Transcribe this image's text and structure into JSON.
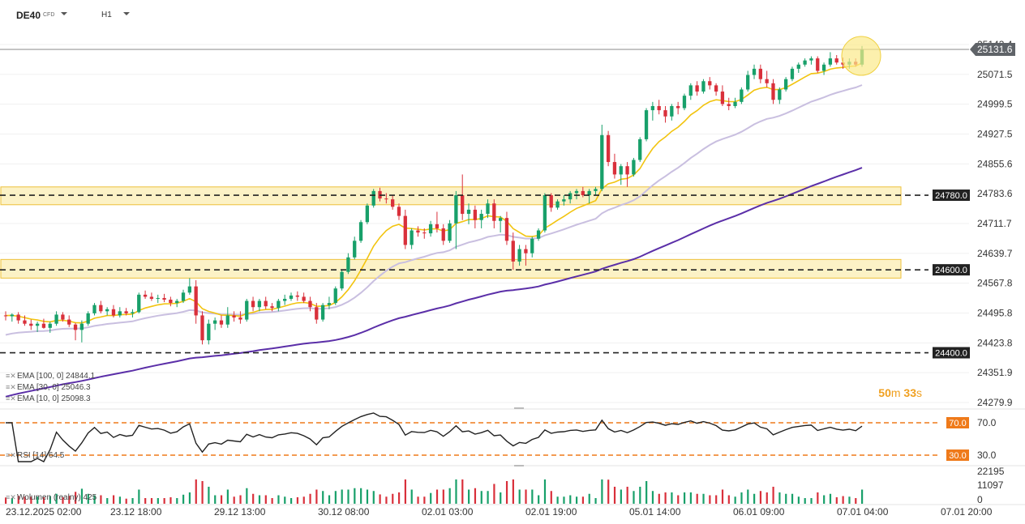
{
  "header": {
    "symbol": "DE40",
    "instrument_type": "CFD",
    "timeframe": "H1"
  },
  "price_axis": {
    "ticks": [
      "25143.4",
      "25071.5",
      "24999.5",
      "24927.5",
      "24855.6",
      "24783.6",
      "24711.7",
      "24639.7",
      "24567.8",
      "24495.8",
      "24423.8",
      "24351.9",
      "24279.9"
    ],
    "current_price": "25131.6"
  },
  "levels": [
    {
      "label": "24780.0",
      "value": 24780.0
    },
    {
      "label": "24600.0",
      "value": 24600.0
    },
    {
      "label": "24400.0",
      "value": 24400.0
    }
  ],
  "zones": [
    {
      "from": 24757,
      "to": 24800
    },
    {
      "from": 24580,
      "to": 24625
    }
  ],
  "legend": [
    {
      "text": "EMA  [100,  0]  24844.1"
    },
    {
      "text": "EMA  [30,  0]  25046.3"
    },
    {
      "text": "EMA  [10,  0]  25098.3"
    }
  ],
  "countdown": {
    "min": "50",
    "min_unit": "m",
    "sec": "33",
    "sec_unit": "s"
  },
  "rsi": {
    "label": "RSI  [14]  64.5",
    "upper_label": "70.0",
    "lower_label": "30.0",
    "axis_top": "70.0",
    "axis_bottom": "30.0"
  },
  "volume": {
    "label": "Wolumen  (realny)  425",
    "ticks": [
      "22195",
      "11097",
      "0"
    ]
  },
  "time_axis": [
    "23.12.2025  02:00",
    "23.12  18:00",
    "29.12  13:00",
    "30.12  08:00",
    "02.01  03:00",
    "02.01  19:00",
    "05.01  14:00",
    "06.01  09:00",
    "07.01  04:00",
    "07.01  20:00"
  ],
  "colors": {
    "up": "#18a06a",
    "down": "#d9303b",
    "ema10": "#f2c40f",
    "ema30": "#c9bfe0",
    "ema100": "#5b2fa8",
    "zone": "#fbeeb3",
    "zone_border": "#eec13b",
    "rsi_band": "#ef7a1a"
  },
  "chart_data": {
    "type": "candlestick",
    "price_range": [
      24279.9,
      25143.4
    ],
    "candles": [
      [
        24490,
        24500,
        24478,
        24488
      ],
      [
        24488,
        24495,
        24475,
        24492
      ],
      [
        24492,
        24498,
        24470,
        24478
      ],
      [
        24478,
        24490,
        24465,
        24470
      ],
      [
        24470,
        24480,
        24455,
        24465
      ],
      [
        24465,
        24475,
        24450,
        24470
      ],
      [
        24470,
        24482,
        24458,
        24460
      ],
      [
        24460,
        24475,
        24448,
        24470
      ],
      [
        24470,
        24500,
        24465,
        24492
      ],
      [
        24492,
        24498,
        24475,
        24480
      ],
      [
        24480,
        24490,
        24462,
        24468
      ],
      [
        24468,
        24472,
        24430,
        24455
      ],
      [
        24455,
        24478,
        24425,
        24470
      ],
      [
        24470,
        24500,
        24465,
        24495
      ],
      [
        24495,
        24520,
        24490,
        24515
      ],
      [
        24515,
        24525,
        24495,
        24500
      ],
      [
        24500,
        24510,
        24490,
        24505
      ],
      [
        24505,
        24515,
        24485,
        24490
      ],
      [
        24490,
        24510,
        24485,
        24500
      ],
      [
        24500,
        24508,
        24490,
        24495
      ],
      [
        24495,
        24505,
        24485,
        24498
      ],
      [
        24498,
        24545,
        24495,
        24540
      ],
      [
        24540,
        24550,
        24530,
        24535
      ],
      [
        24535,
        24545,
        24525,
        24530
      ],
      [
        24530,
        24540,
        24520,
        24532
      ],
      [
        24532,
        24542,
        24522,
        24528
      ],
      [
        24528,
        24535,
        24512,
        24520
      ],
      [
        24520,
        24530,
        24510,
        24525
      ],
      [
        24525,
        24552,
        24520,
        24545
      ],
      [
        24545,
        24580,
        24540,
        24560
      ],
      [
        24560,
        24575,
        24470,
        24490
      ],
      [
        24490,
        24500,
        24420,
        24430
      ],
      [
        24430,
        24480,
        24420,
        24470
      ],
      [
        24470,
        24485,
        24455,
        24478
      ],
      [
        24478,
        24490,
        24460,
        24468
      ],
      [
        24468,
        24510,
        24460,
        24490
      ],
      [
        24490,
        24500,
        24475,
        24485
      ],
      [
        24485,
        24500,
        24470,
        24480
      ],
      [
        24480,
        24530,
        24475,
        24525
      ],
      [
        24525,
        24535,
        24500,
        24510
      ],
      [
        24510,
        24530,
        24500,
        24525
      ],
      [
        24525,
        24535,
        24505,
        24512
      ],
      [
        24512,
        24520,
        24500,
        24508
      ],
      [
        24508,
        24530,
        24500,
        24525
      ],
      [
        24525,
        24540,
        24515,
        24530
      ],
      [
        24530,
        24545,
        24525,
        24538
      ],
      [
        24538,
        24548,
        24525,
        24535
      ],
      [
        24535,
        24545,
        24520,
        24525
      ],
      [
        24525,
        24535,
        24500,
        24510
      ],
      [
        24510,
        24520,
        24470,
        24480
      ],
      [
        24480,
        24520,
        24475,
        24515
      ],
      [
        24515,
        24535,
        24505,
        24520
      ],
      [
        24520,
        24560,
        24515,
        24555
      ],
      [
        24555,
        24600,
        24550,
        24595
      ],
      [
        24595,
        24640,
        24590,
        24630
      ],
      [
        24630,
        24680,
        24625,
        24670
      ],
      [
        24670,
        24720,
        24665,
        24715
      ],
      [
        24715,
        24760,
        24710,
        24755
      ],
      [
        24755,
        24795,
        24750,
        24790
      ],
      [
        24790,
        24798,
        24765,
        24772
      ],
      [
        24772,
        24785,
        24760,
        24770
      ],
      [
        24770,
        24780,
        24745,
        24752
      ],
      [
        24752,
        24760,
        24720,
        24730
      ],
      [
        24730,
        24745,
        24650,
        24660
      ],
      [
        24660,
        24700,
        24650,
        24695
      ],
      [
        24695,
        24705,
        24680,
        24690
      ],
      [
        24690,
        24700,
        24675,
        24688
      ],
      [
        24688,
        24718,
        24680,
        24710
      ],
      [
        24710,
        24740,
        24690,
        24700
      ],
      [
        24700,
        24710,
        24660,
        24670
      ],
      [
        24670,
        24720,
        24665,
        24712
      ],
      [
        24712,
        24790,
        24650,
        24780
      ],
      [
        24780,
        24830,
        24720,
        24735
      ],
      [
        24735,
        24760,
        24710,
        24745
      ],
      [
        24745,
        24755,
        24700,
        24720
      ],
      [
        24720,
        24745,
        24700,
        24735
      ],
      [
        24735,
        24770,
        24725,
        24760
      ],
      [
        24760,
        24770,
        24700,
        24718
      ],
      [
        24718,
        24730,
        24690,
        24725
      ],
      [
        24725,
        24740,
        24660,
        24670
      ],
      [
        24670,
        24690,
        24600,
        24620
      ],
      [
        24620,
        24660,
        24610,
        24650
      ],
      [
        24650,
        24660,
        24610,
        24640
      ],
      [
        24640,
        24680,
        24630,
        24675
      ],
      [
        24675,
        24700,
        24670,
        24695
      ],
      [
        24695,
        24785,
        24690,
        24780
      ],
      [
        24780,
        24785,
        24740,
        24750
      ],
      [
        24750,
        24770,
        24745,
        24765
      ],
      [
        24765,
        24780,
        24755,
        24770
      ],
      [
        24770,
        24790,
        24760,
        24785
      ],
      [
        24785,
        24795,
        24770,
        24790
      ],
      [
        24790,
        24800,
        24775,
        24780
      ],
      [
        24780,
        24795,
        24760,
        24790
      ],
      [
        24790,
        24800,
        24780,
        24795
      ],
      [
        24795,
        24950,
        24790,
        24925
      ],
      [
        24925,
        24935,
        24850,
        24860
      ],
      [
        24860,
        24880,
        24820,
        24830
      ],
      [
        24830,
        24855,
        24805,
        24850
      ],
      [
        24850,
        24860,
        24800,
        24830
      ],
      [
        24830,
        24870,
        24825,
        24865
      ],
      [
        24865,
        24920,
        24860,
        24915
      ],
      [
        24915,
        24990,
        24910,
        24985
      ],
      [
        24985,
        25005,
        24960,
        24995
      ],
      [
        24995,
        25010,
        24975,
        24985
      ],
      [
        24985,
        24995,
        24955,
        24970
      ],
      [
        24970,
        25000,
        24960,
        24995
      ],
      [
        24995,
        25005,
        24975,
        24990
      ],
      [
        24990,
        25025,
        24985,
        25020
      ],
      [
        25020,
        25050,
        25010,
        25045
      ],
      [
        25045,
        25055,
        25020,
        25030
      ],
      [
        25030,
        25060,
        25025,
        25055
      ],
      [
        25055,
        25065,
        25035,
        25045
      ],
      [
        25045,
        25050,
        25020,
        25030
      ],
      [
        25030,
        25045,
        24995,
        25000
      ],
      [
        25000,
        25015,
        24985,
        24995
      ],
      [
        24995,
        25015,
        24990,
        25005
      ],
      [
        25005,
        25040,
        25000,
        25035
      ],
      [
        25035,
        25080,
        25030,
        25070
      ],
      [
        25070,
        25095,
        25060,
        25085
      ],
      [
        25085,
        25095,
        25050,
        25060
      ],
      [
        25060,
        25080,
        25040,
        25050
      ],
      [
        25050,
        25060,
        25000,
        25010
      ],
      [
        25010,
        25040,
        25000,
        25035
      ],
      [
        25035,
        25065,
        25030,
        25060
      ],
      [
        25060,
        25090,
        25055,
        25085
      ],
      [
        25085,
        25100,
        25075,
        25095
      ],
      [
        25095,
        25110,
        25090,
        25105
      ],
      [
        25105,
        25115,
        25095,
        25110
      ],
      [
        25110,
        25115,
        25075,
        25080
      ],
      [
        25080,
        25100,
        25070,
        25095
      ],
      [
        25095,
        25125,
        25090,
        25110
      ],
      [
        25110,
        25118,
        25095,
        25100
      ],
      [
        25100,
        25112,
        25085,
        25095
      ],
      [
        25095,
        25110,
        25085,
        25102
      ],
      [
        25102,
        25110,
        25090,
        25095
      ],
      [
        25095,
        25140,
        25090,
        25131.6
      ]
    ]
  }
}
